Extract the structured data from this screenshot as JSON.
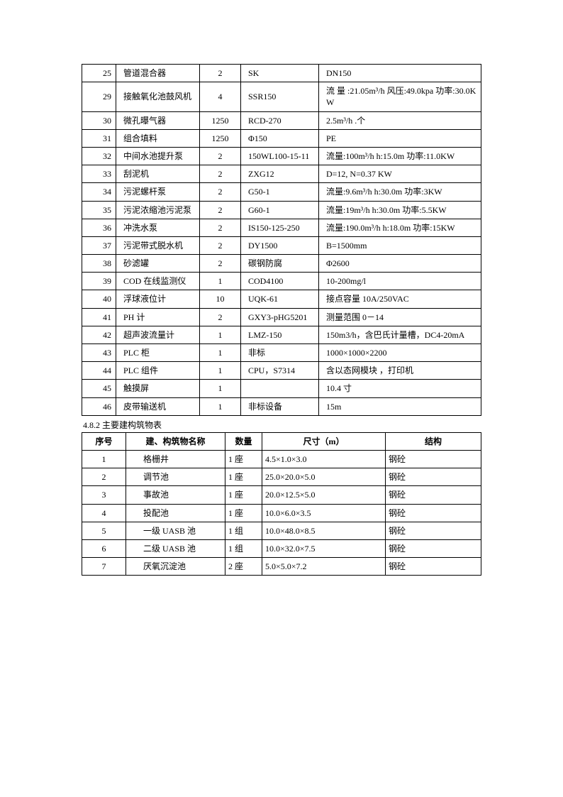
{
  "equipment": {
    "rows": [
      {
        "no": "25",
        "name": "管道混合器",
        "qty": "2",
        "model": "SK",
        "spec": "DN150"
      },
      {
        "no": "29",
        "name": "接触氧化池鼓风机",
        "qty": "4",
        "model": "SSR150",
        "spec": " 流 量 :21.05m³/h    风压:49.0kpa  功率:30.0KW"
      },
      {
        "no": "30",
        "name": "微孔曝气器",
        "qty": "1250",
        "model": "RCD-270",
        "spec": " 2.5m³/h .个"
      },
      {
        "no": "31",
        "name": "组合填料",
        "qty": "1250",
        "model": "Φ150",
        "spec": " PE"
      },
      {
        "no": "32",
        "name": "中间水池提升泵",
        "qty": "2",
        "model": "150WL100-15-11",
        "spec": " 流量:100m³/h  h:15.0m  功率:11.0KW"
      },
      {
        "no": "33",
        "name": "刮泥机",
        "qty": "2",
        "model": "ZXG12",
        "spec": " D=12, N=0.37 KW"
      },
      {
        "no": "34",
        "name": "污泥螺杆泵",
        "qty": "2",
        "model": "G50-1",
        "spec": " 流量:9.6m³/h  h:30.0m  功率:3KW"
      },
      {
        "no": "35",
        "name": "污泥浓缩池污泥泵",
        "qty": "2",
        "model": "G60-1",
        "spec": " 流量:19m³/h  h:30.0m   功率:5.5KW"
      },
      {
        "no": "36",
        "name": "冲洗水泵",
        "qty": "2",
        "model": "IS150-125-250",
        "spec": " 流量:190.0m³/h   h:18.0m  功率:15KW"
      },
      {
        "no": "37",
        "name": "污泥带式脱水机",
        "qty": "2",
        "model": "DY1500",
        "spec": " B=1500mm"
      },
      {
        "no": "38",
        "name": "砂滤罐",
        "qty": "2",
        "model": "碳钢防腐",
        "spec": " Φ2600"
      },
      {
        "no": "39",
        "name": "COD 在线监测仪",
        "qty": "1",
        "model": "COD4100",
        "spec": " 10-200mg/l"
      },
      {
        "no": "40",
        "name": "浮球液位计",
        "qty": "10",
        "model": "UQK-61",
        "spec": " 接点容量 10A/250VAC"
      },
      {
        "no": "41",
        "name": "PH 计",
        "qty": "2",
        "model": "GXY3-pHG5201",
        "spec": " 测量范围 0－14"
      },
      {
        "no": "42",
        "name": "超声波流量计",
        "qty": "1",
        "model": "LMZ-150",
        "spec": " 150m3/h，含巴氏计量槽，DC4-20mA"
      },
      {
        "no": "43",
        "name": "PLC 柜",
        "qty": "1",
        "model": "非标",
        "spec": " 1000×1000×2200"
      },
      {
        "no": "44",
        "name": "PLC 组件",
        "qty": "1",
        "model": "CPU，S7314",
        "spec": " 含以态网模块 ，打印机"
      },
      {
        "no": "45",
        "name": "触摸屏",
        "qty": "1",
        "model": "",
        "spec": " 10.4 寸"
      },
      {
        "no": "46",
        "name": "皮带输送机",
        "qty": "1",
        "model": "非标设备",
        "spec": " 15m"
      }
    ]
  },
  "section_title": "4.8.2 主要建构筑物表",
  "buildings": {
    "headers": {
      "seq": "序号",
      "name": "建、构筑物名称",
      "qty": "数量",
      "size": "尺寸（m）",
      "struct": "结构"
    },
    "rows": [
      {
        "seq": "1",
        "name": "格栅井",
        "qty": "1 座",
        "size": "4.5×1.0×3.0",
        "struct": "钢砼"
      },
      {
        "seq": "2",
        "name": "调节池",
        "qty": "1 座",
        "size": "25.0×20.0×5.0",
        "struct": "钢砼"
      },
      {
        "seq": "3",
        "name": "事故池",
        "qty": "1 座",
        "size": "20.0×12.5×5.0",
        "struct": "钢砼"
      },
      {
        "seq": "4",
        "name": "投配池",
        "qty": "1 座",
        "size": "10.0×6.0×3.5",
        "struct": "钢砼"
      },
      {
        "seq": "5",
        "name": "一级 UASB 池",
        "qty": "1 组",
        "size": "10.0×48.0×8.5",
        "struct": "钢砼"
      },
      {
        "seq": "6",
        "name": "二级 UASB 池",
        "qty": "1 组",
        "size": "10.0×32.0×7.5",
        "struct": "钢砼"
      },
      {
        "seq": "7",
        "name": "厌氧沉淀池",
        "qty": "2 座",
        "size": "5.0×5.0×7.2",
        "struct": "钢砼"
      }
    ]
  }
}
